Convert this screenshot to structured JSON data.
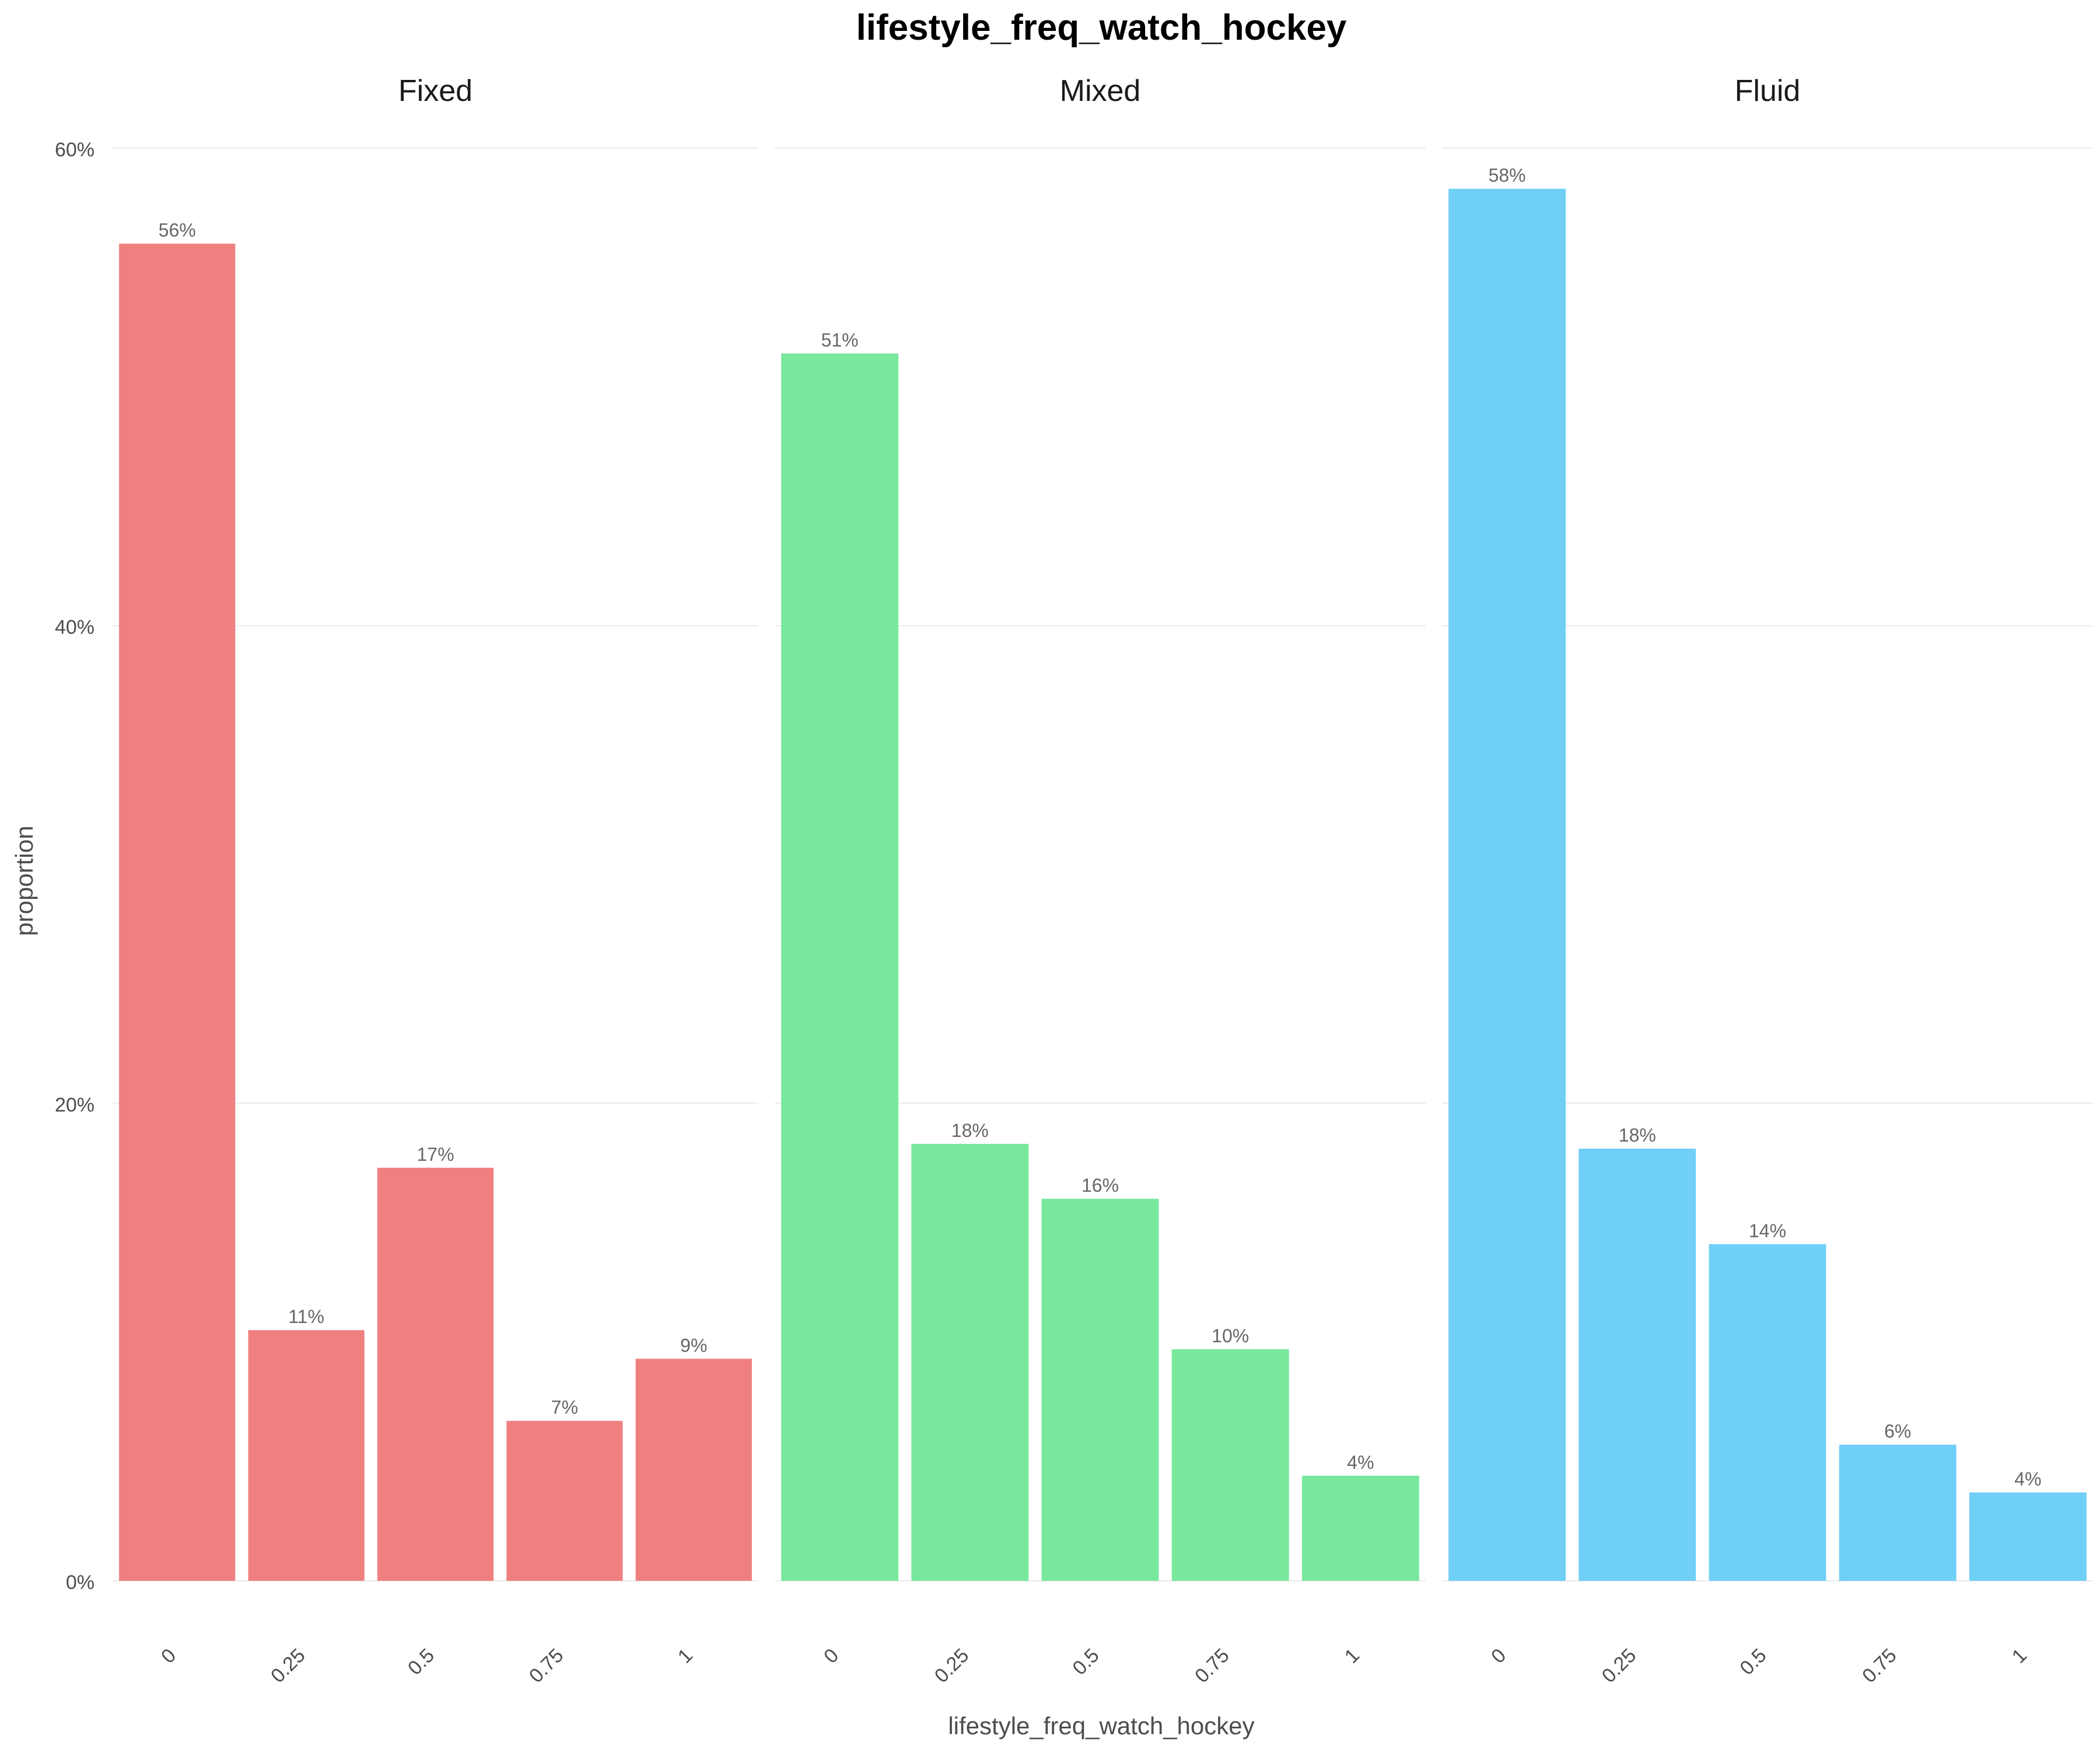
{
  "chart_data": {
    "type": "bar",
    "title": "lifestyle_freq_watch_hockey",
    "xlabel": "lifestyle_freq_watch_hockey",
    "ylabel": "proportion",
    "ylim": [
      0,
      0.6
    ],
    "yticks": [
      {
        "value": 0,
        "label": "0%"
      },
      {
        "value": 0.2,
        "label": "20%"
      },
      {
        "value": 0.4,
        "label": "40%"
      },
      {
        "value": 0.6,
        "label": "60%"
      }
    ],
    "categories": [
      "0",
      "0.25",
      "0.5",
      "0.75",
      "1"
    ],
    "grid": true,
    "legend": "none",
    "facets": [
      {
        "name": "Fixed",
        "color": "#F08080",
        "values": [
          0.56,
          0.105,
          0.173,
          0.067,
          0.093
        ],
        "labels": [
          "56%",
          "11%",
          "17%",
          "7%",
          "9%"
        ]
      },
      {
        "name": "Mixed",
        "color": "#77E89C",
        "values": [
          0.514,
          0.183,
          0.16,
          0.097,
          0.044
        ],
        "labels": [
          "51%",
          "18%",
          "16%",
          "10%",
          "4%"
        ]
      },
      {
        "name": "Fluid",
        "color": "#6FCFF6",
        "values": [
          0.583,
          0.181,
          0.141,
          0.057,
          0.037
        ],
        "labels": [
          "58%",
          "18%",
          "14%",
          "6%",
          "4%"
        ]
      }
    ]
  }
}
